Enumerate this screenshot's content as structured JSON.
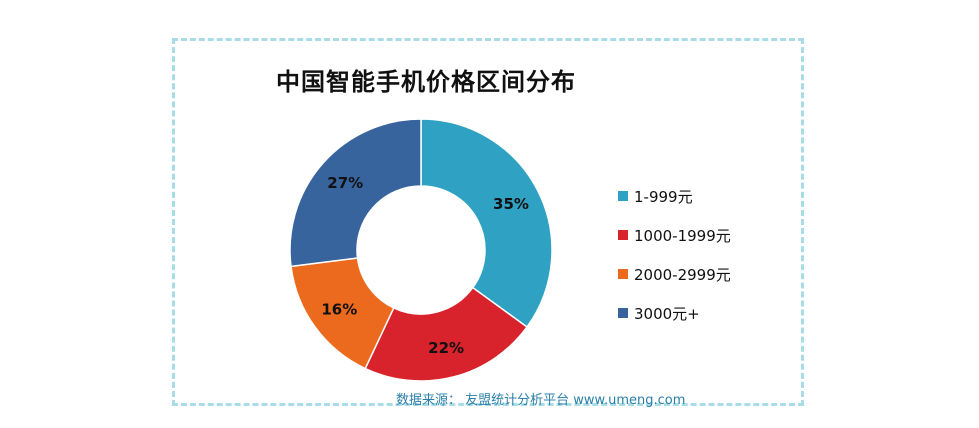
{
  "chart_data": {
    "type": "pie",
    "title": "中国智能手机价格区间分布",
    "categories": [
      "1-999元",
      "1000-1999元",
      "2000-2999元",
      "3000元+"
    ],
    "values": [
      35,
      22,
      16,
      27
    ],
    "value_labels": [
      "35%",
      "22%",
      "16%",
      "27%"
    ],
    "colors": [
      "#2fa1c3",
      "#d8222c",
      "#eb6a1d",
      "#38649e"
    ],
    "legend_position": "right",
    "source": "数据来源：  友盟统计分析平台 www.umeng.com"
  }
}
